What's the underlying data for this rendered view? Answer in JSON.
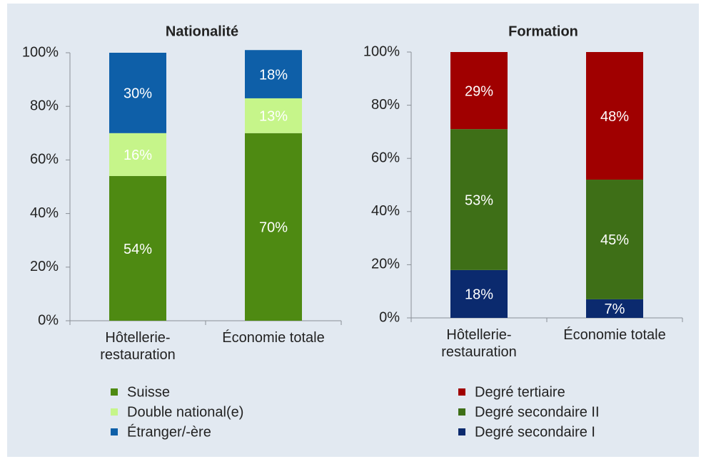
{
  "chart_data": [
    {
      "type": "stacked_bar",
      "title": "Nationalité",
      "categories": [
        "Hôtellerie-restauration",
        "Économie totale"
      ],
      "series": [
        {
          "name": "Suisse",
          "color": "#4e8a12",
          "values": [
            54,
            70
          ],
          "value_labels": [
            "54%",
            "70%"
          ]
        },
        {
          "name": "Double national(e)",
          "color": "#c6f58a",
          "values": [
            16,
            13
          ],
          "value_labels": [
            "16%",
            "13%"
          ]
        },
        {
          "name": "Étranger/-ère",
          "color": "#0e5fa8",
          "values": [
            30,
            18
          ],
          "value_labels": [
            "30%",
            "18%"
          ]
        }
      ],
      "ylim": [
        0,
        100
      ],
      "yticks": [
        {
          "value": 0,
          "label": "0%"
        },
        {
          "value": 20,
          "label": "20%"
        },
        {
          "value": 40,
          "label": "40%"
        },
        {
          "value": 60,
          "label": "60%"
        },
        {
          "value": 80,
          "label": "80%"
        },
        {
          "value": 100,
          "label": "100%"
        }
      ],
      "legend_reversed": false
    },
    {
      "type": "stacked_bar",
      "title": "Formation",
      "categories": [
        "Hôtellerie-restauration",
        "Économie totale"
      ],
      "series": [
        {
          "name": "Degré secondaire I",
          "color": "#0b2a6e",
          "values": [
            18,
            7
          ],
          "value_labels": [
            "18%",
            "7%"
          ]
        },
        {
          "name": "Degré secondaire II",
          "color": "#3e6f17",
          "values": [
            53,
            45
          ],
          "value_labels": [
            "53%",
            "45%"
          ]
        },
        {
          "name": "Degré tertiaire",
          "color": "#a00000",
          "values": [
            29,
            48
          ],
          "value_labels": [
            "29%",
            "48%"
          ]
        }
      ],
      "ylim": [
        0,
        100
      ],
      "yticks": [
        {
          "value": 0,
          "label": "0%"
        },
        {
          "value": 20,
          "label": "20%"
        },
        {
          "value": 40,
          "label": "40%"
        },
        {
          "value": 60,
          "label": "60%"
        },
        {
          "value": 80,
          "label": "80%"
        },
        {
          "value": 100,
          "label": "100%"
        }
      ],
      "legend_reversed": true
    }
  ]
}
